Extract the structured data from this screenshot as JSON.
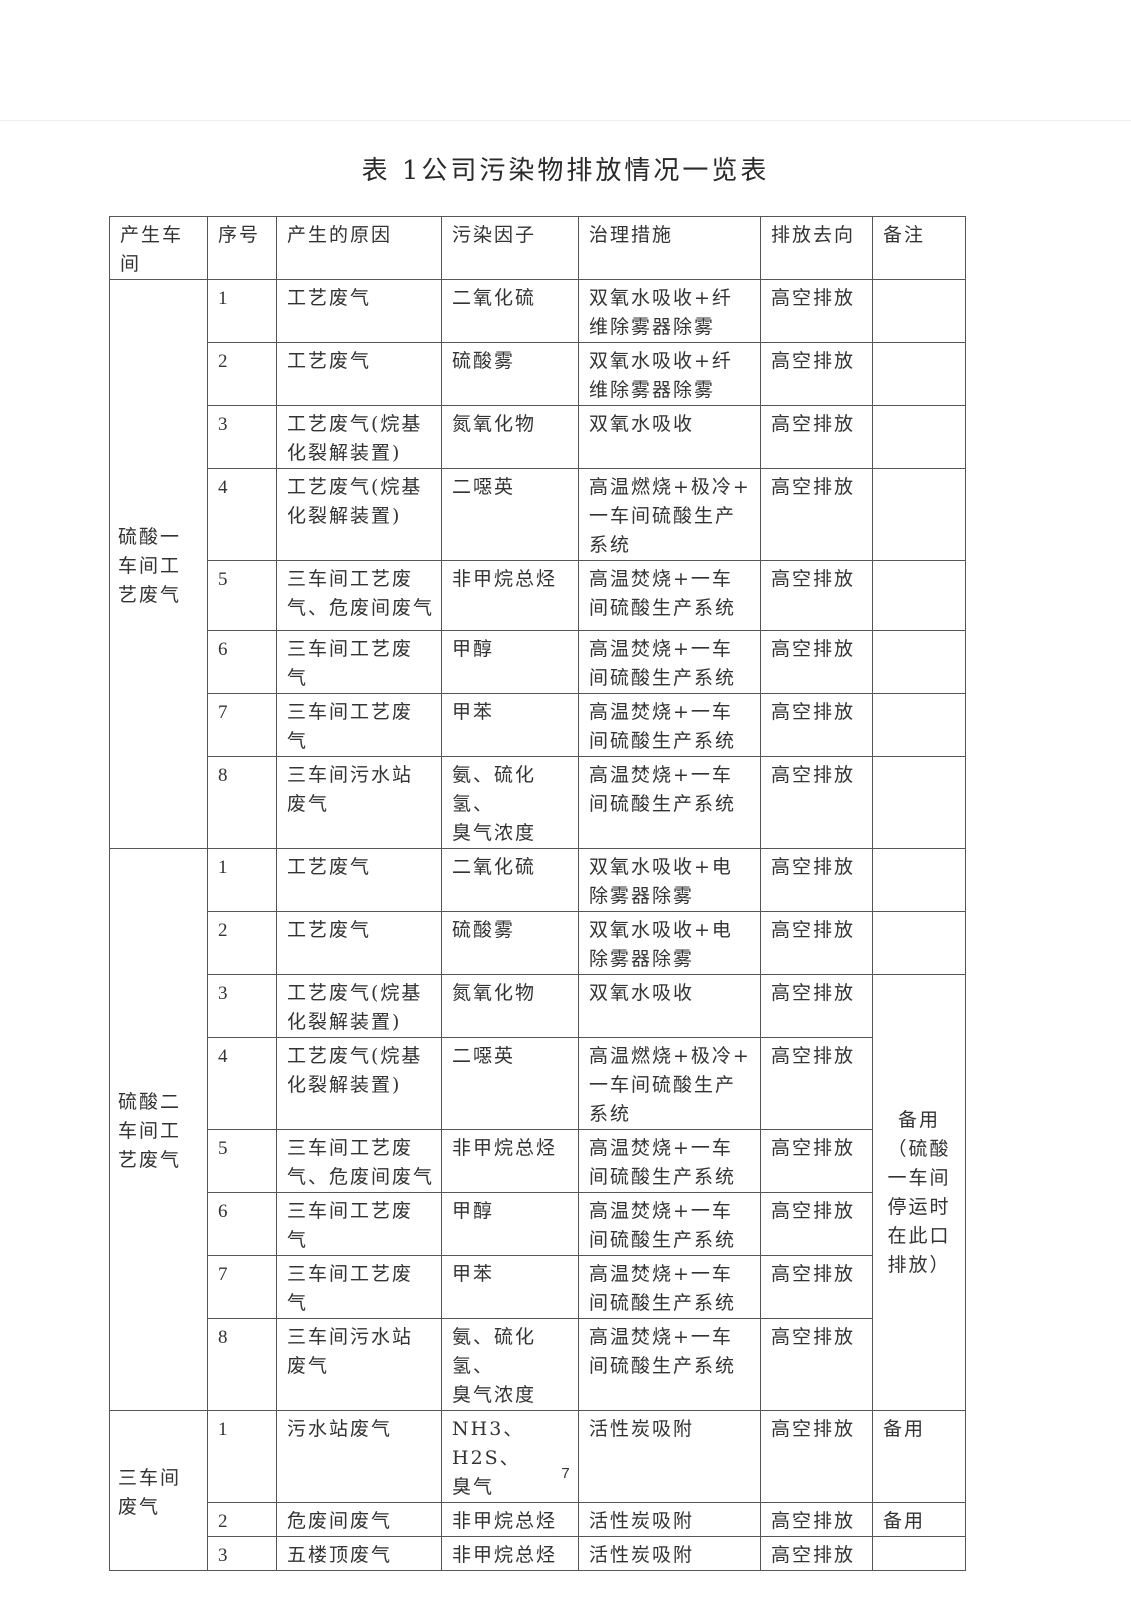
{
  "title": "表 1公司污染物排放情况一览表",
  "page_number": "7",
  "headers": [
    "产生车\n间",
    "序号",
    "产生的原因",
    "污染因子",
    "治理措施",
    "排放去向",
    "备注"
  ],
  "groups": [
    {
      "name": "硫酸一\n车间工\n艺废气",
      "rows": [
        {
          "no": "1",
          "cause": "工艺废气",
          "factor": "二氧化硫",
          "measure": "双氧水吸收+纤\n维除雾器除雾",
          "dest": "高空排放",
          "remark": ""
        },
        {
          "no": "2",
          "cause": "工艺废气",
          "factor": "硫酸雾",
          "measure": "双氧水吸收+纤\n维除雾器除雾",
          "dest": "高空排放",
          "remark": ""
        },
        {
          "no": "3",
          "cause": "工艺废气(烷基\n化裂解装置)",
          "factor": "氮氧化物",
          "measure": "双氧水吸收",
          "dest": "高空排放",
          "remark": ""
        },
        {
          "no": "4",
          "cause": "工艺废气(烷基\n化裂解装置)",
          "factor": "二噁英",
          "measure": "高温燃烧+极冷+\n一车间硫酸生产\n系统",
          "dest": "高空排放",
          "remark": ""
        },
        {
          "no": "5",
          "cause": "三车间工艺废\n气、危废间废气",
          "factor": "非甲烷总烃",
          "measure": "高温焚烧+一车\n间硫酸生产系统",
          "dest": "高空排放",
          "remark": ""
        },
        {
          "no": "6",
          "cause": "三车间工艺废\n气",
          "factor": "甲醇",
          "measure": "高温焚烧+一车\n间硫酸生产系统",
          "dest": "高空排放",
          "remark": ""
        },
        {
          "no": "7",
          "cause": "三车间工艺废\n气",
          "factor": "甲苯",
          "measure": "高温焚烧+一车\n间硫酸生产系统",
          "dest": "高空排放",
          "remark": ""
        },
        {
          "no": "8",
          "cause": "三车间污水站\n废气",
          "factor": "氨、硫化氢、\n臭气浓度",
          "measure": "高温焚烧+一车\n间硫酸生产系统",
          "dest": "高空排放",
          "remark": ""
        }
      ]
    },
    {
      "name": "硫酸二\n车间工\n艺废气",
      "merged_remark": "备用\n（硫酸\n一车间\n停运时\n在此口\n排放）",
      "rows": [
        {
          "no": "1",
          "cause": "工艺废气",
          "factor": "二氧化硫",
          "measure": "双氧水吸收+电\n除雾器除雾",
          "dest": "高空排放",
          "remark": ""
        },
        {
          "no": "2",
          "cause": "工艺废气",
          "factor": "硫酸雾",
          "measure": "双氧水吸收+电\n除雾器除雾",
          "dest": "高空排放",
          "remark": ""
        },
        {
          "no": "3",
          "cause": "工艺废气(烷基\n化裂解装置)",
          "factor": "氮氧化物",
          "measure": "双氧水吸收",
          "dest": "高空排放"
        },
        {
          "no": "4",
          "cause": "工艺废气(烷基\n化裂解装置)",
          "factor": "二噁英",
          "measure": "高温燃烧+极冷+\n一车间硫酸生产\n系统",
          "dest": "高空排放"
        },
        {
          "no": "5",
          "cause": "三车间工艺废\n气、危废间废气",
          "factor": "非甲烷总烃",
          "measure": "高温焚烧+一车\n间硫酸生产系统",
          "dest": "高空排放"
        },
        {
          "no": "6",
          "cause": "三车间工艺废\n气",
          "factor": "甲醇",
          "measure": "高温焚烧+一车\n间硫酸生产系统",
          "dest": "高空排放"
        },
        {
          "no": "7",
          "cause": "三车间工艺废\n气",
          "factor": "甲苯",
          "measure": "高温焚烧+一车\n间硫酸生产系统",
          "dest": "高空排放"
        },
        {
          "no": "8",
          "cause": "三车间污水站\n废气",
          "factor": "氨、硫化氢、\n臭气浓度",
          "measure": "高温焚烧+一车\n间硫酸生产系统",
          "dest": "高空排放"
        }
      ]
    },
    {
      "name": "三车间\n废气",
      "rows": [
        {
          "no": "1",
          "cause": "污水站废气",
          "factor": "NH3、H2S、\n臭气",
          "measure": "活性炭吸附",
          "dest": "高空排放",
          "remark": "备用"
        },
        {
          "no": "2",
          "cause": "危废间废气",
          "factor": "非甲烷总烃",
          "measure": "活性炭吸附",
          "dest": "高空排放",
          "remark": "备用"
        },
        {
          "no": "3",
          "cause": "五楼顶废气",
          "factor": "非甲烷总烃",
          "measure": "活性炭吸附",
          "dest": "高空排放",
          "remark": ""
        }
      ]
    }
  ]
}
